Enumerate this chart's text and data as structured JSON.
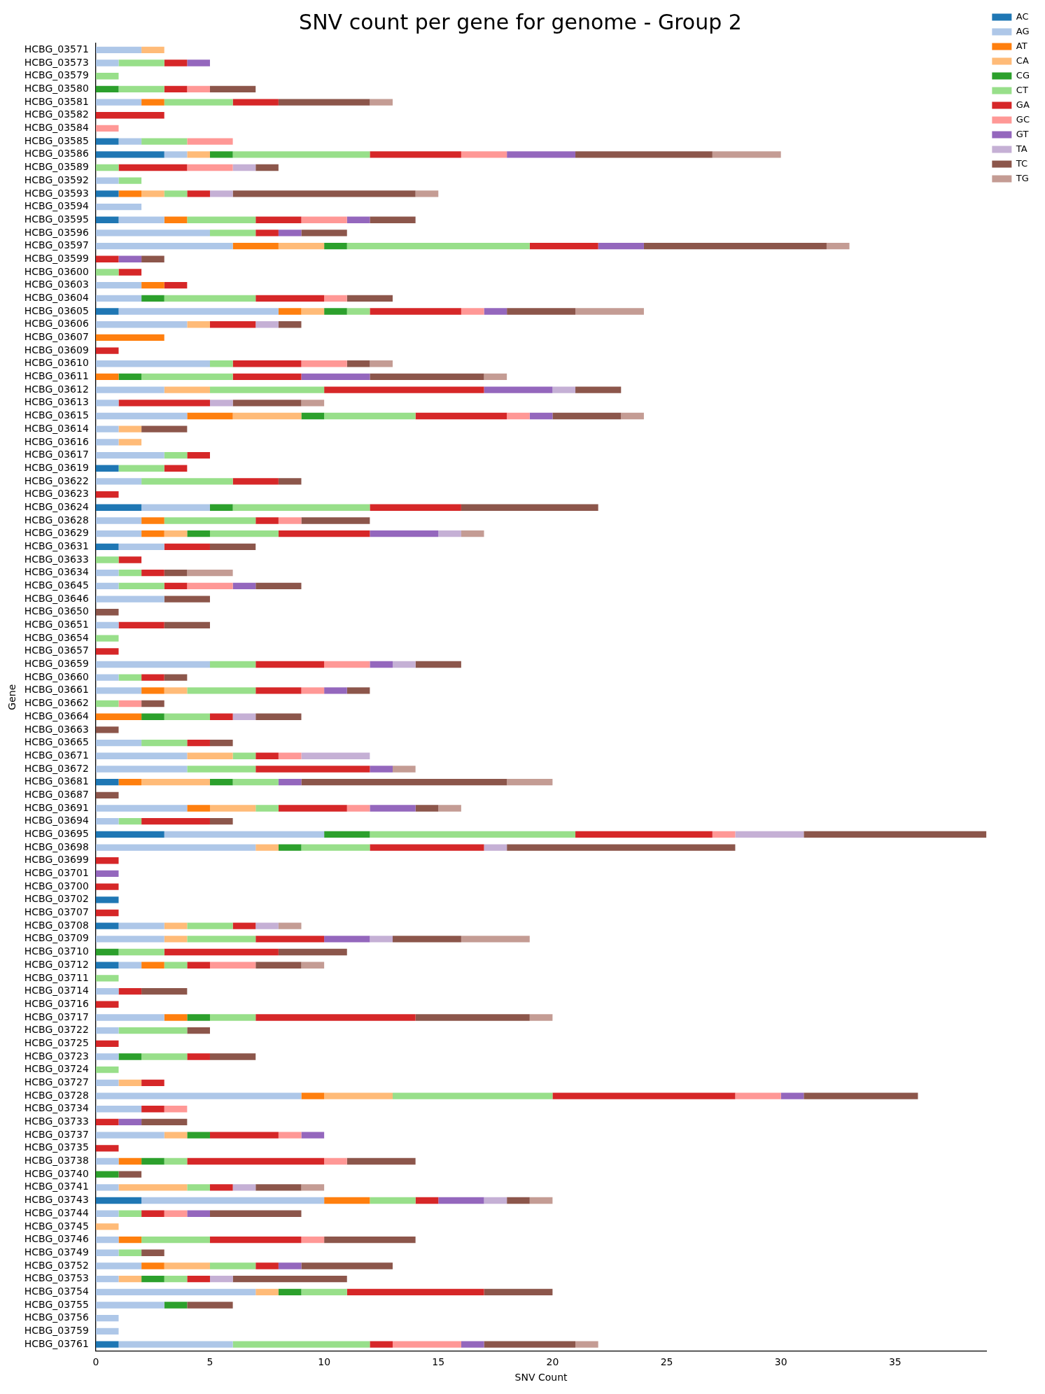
{
  "chart_data": {
    "type": "bar",
    "orientation": "horizontal",
    "stacked": true,
    "title": "SNV count per gene for genome - Group 2",
    "xlabel": "SNV Count",
    "ylabel": "Gene",
    "legend": "top right",
    "grid": false,
    "xlim": [
      0,
      39
    ],
    "xticks": [
      0,
      5,
      10,
      15,
      20,
      25,
      30,
      35
    ],
    "categories": [
      "HCBG_03571",
      "HCBG_03573",
      "HCBG_03579",
      "HCBG_03580",
      "HCBG_03581",
      "HCBG_03582",
      "HCBG_03584",
      "HCBG_03585",
      "HCBG_03586",
      "HCBG_03589",
      "HCBG_03592",
      "HCBG_03593",
      "HCBG_03594",
      "HCBG_03595",
      "HCBG_03596",
      "HCBG_03597",
      "HCBG_03599",
      "HCBG_03600",
      "HCBG_03603",
      "HCBG_03604",
      "HCBG_03605",
      "HCBG_03606",
      "HCBG_03607",
      "HCBG_03609",
      "HCBG_03610",
      "HCBG_03611",
      "HCBG_03612",
      "HCBG_03613",
      "HCBG_03615",
      "HCBG_03614",
      "HCBG_03616",
      "HCBG_03617",
      "HCBG_03619",
      "HCBG_03622",
      "HCBG_03623",
      "HCBG_03624",
      "HCBG_03628",
      "HCBG_03629",
      "HCBG_03631",
      "HCBG_03633",
      "HCBG_03634",
      "HCBG_03645",
      "HCBG_03646",
      "HCBG_03650",
      "HCBG_03651",
      "HCBG_03654",
      "HCBG_03657",
      "HCBG_03659",
      "HCBG_03660",
      "HCBG_03661",
      "HCBG_03662",
      "HCBG_03664",
      "HCBG_03663",
      "HCBG_03665",
      "HCBG_03671",
      "HCBG_03672",
      "HCBG_03681",
      "HCBG_03687",
      "HCBG_03691",
      "HCBG_03694",
      "HCBG_03695",
      "HCBG_03698",
      "HCBG_03699",
      "HCBG_03701",
      "HCBG_03700",
      "HCBG_03702",
      "HCBG_03707",
      "HCBG_03708",
      "HCBG_03709",
      "HCBG_03710",
      "HCBG_03712",
      "HCBG_03711",
      "HCBG_03714",
      "HCBG_03716",
      "HCBG_03717",
      "HCBG_03722",
      "HCBG_03725",
      "HCBG_03723",
      "HCBG_03724",
      "HCBG_03727",
      "HCBG_03728",
      "HCBG_03734",
      "HCBG_03733",
      "HCBG_03737",
      "HCBG_03735",
      "HCBG_03738",
      "HCBG_03740",
      "HCBG_03741",
      "HCBG_03743",
      "HCBG_03744",
      "HCBG_03745",
      "HCBG_03746",
      "HCBG_03749",
      "HCBG_03752",
      "HCBG_03753",
      "HCBG_03754",
      "HCBG_03755",
      "HCBG_03756",
      "HCBG_03759",
      "HCBG_03761"
    ],
    "series": [
      {
        "name": "AC",
        "color": "#1f77b4",
        "values": [
          0,
          0,
          0,
          0,
          0,
          0,
          0,
          1,
          3,
          0,
          0,
          1,
          0,
          1,
          0,
          0,
          0,
          0,
          0,
          0,
          1,
          0,
          0,
          0,
          0,
          0,
          0,
          0,
          0,
          0,
          0,
          0,
          1,
          0,
          0,
          2,
          0,
          0,
          1,
          0,
          0,
          0,
          0,
          0,
          0,
          0,
          0,
          0,
          0,
          0,
          0,
          0,
          0,
          0,
          0,
          0,
          1,
          0,
          0,
          0,
          3,
          0,
          0,
          0,
          0,
          1,
          0,
          1,
          0,
          0,
          1,
          0,
          0,
          0,
          0,
          0,
          0,
          0,
          0,
          0,
          0,
          0,
          0,
          0,
          0,
          0,
          0,
          0,
          2,
          0,
          0,
          0,
          0,
          0,
          0,
          0,
          0,
          0,
          0,
          1
        ]
      },
      {
        "name": "AG",
        "color": "#aec7e8",
        "values": [
          2,
          1,
          0,
          0,
          2,
          0,
          0,
          1,
          1,
          0,
          1,
          0,
          2,
          2,
          5,
          6,
          0,
          0,
          2,
          2,
          7,
          4,
          0,
          0,
          5,
          0,
          3,
          1,
          4,
          1,
          1,
          3,
          0,
          2,
          0,
          3,
          2,
          2,
          2,
          0,
          1,
          1,
          3,
          0,
          1,
          0,
          0,
          5,
          1,
          2,
          0,
          0,
          0,
          2,
          4,
          4,
          0,
          0,
          4,
          1,
          7,
          7,
          0,
          0,
          0,
          0,
          0,
          2,
          3,
          0,
          1,
          0,
          1,
          0,
          3,
          1,
          0,
          1,
          0,
          1,
          9,
          2,
          0,
          3,
          0,
          1,
          0,
          1,
          8,
          1,
          0,
          1,
          1,
          2,
          1,
          7,
          3,
          1,
          1,
          5
        ]
      },
      {
        "name": "AT",
        "color": "#ff7f0e",
        "values": [
          0,
          0,
          0,
          0,
          1,
          0,
          0,
          0,
          0,
          0,
          0,
          1,
          0,
          1,
          0,
          2,
          0,
          0,
          1,
          0,
          1,
          0,
          3,
          0,
          0,
          1,
          0,
          0,
          2,
          0,
          0,
          0,
          0,
          0,
          0,
          0,
          1,
          1,
          0,
          0,
          0,
          0,
          0,
          0,
          0,
          0,
          0,
          0,
          0,
          1,
          0,
          2,
          0,
          0,
          0,
          0,
          1,
          0,
          1,
          0,
          0,
          0,
          0,
          0,
          0,
          0,
          0,
          0,
          0,
          0,
          1,
          0,
          0,
          0,
          1,
          0,
          0,
          0,
          0,
          0,
          1,
          0,
          0,
          0,
          0,
          1,
          0,
          0,
          2,
          0,
          0,
          1,
          0,
          1,
          0,
          0,
          0,
          0,
          0,
          0
        ]
      },
      {
        "name": "CA",
        "color": "#ffbb78",
        "values": [
          1,
          0,
          0,
          0,
          0,
          0,
          0,
          0,
          1,
          0,
          0,
          1,
          0,
          0,
          0,
          2,
          0,
          0,
          0,
          0,
          1,
          1,
          0,
          0,
          0,
          0,
          2,
          0,
          3,
          1,
          1,
          0,
          0,
          0,
          0,
          0,
          0,
          1,
          0,
          0,
          0,
          0,
          0,
          0,
          0,
          0,
          0,
          0,
          0,
          1,
          0,
          0,
          0,
          0,
          2,
          0,
          3,
          0,
          2,
          0,
          0,
          1,
          0,
          0,
          0,
          0,
          0,
          1,
          1,
          0,
          0,
          0,
          0,
          0,
          0,
          0,
          0,
          0,
          0,
          1,
          3,
          0,
          0,
          1,
          0,
          0,
          0,
          3,
          0,
          0,
          1,
          0,
          0,
          2,
          1,
          1,
          0,
          0,
          0,
          0
        ]
      },
      {
        "name": "CG",
        "color": "#2ca02c",
        "values": [
          0,
          0,
          0,
          1,
          0,
          0,
          0,
          0,
          1,
          0,
          0,
          0,
          0,
          0,
          0,
          1,
          0,
          0,
          0,
          1,
          1,
          0,
          0,
          0,
          0,
          1,
          0,
          0,
          1,
          0,
          0,
          0,
          0,
          0,
          0,
          1,
          0,
          1,
          0,
          0,
          0,
          0,
          0,
          0,
          0,
          0,
          0,
          0,
          0,
          0,
          0,
          1,
          0,
          0,
          0,
          0,
          1,
          0,
          0,
          0,
          2,
          1,
          0,
          0,
          0,
          0,
          0,
          0,
          0,
          1,
          0,
          0,
          0,
          0,
          1,
          0,
          0,
          1,
          0,
          0,
          0,
          0,
          0,
          1,
          0,
          1,
          1,
          0,
          0,
          0,
          0,
          0,
          0,
          0,
          1,
          1,
          1,
          0,
          0,
          0
        ]
      },
      {
        "name": "CT",
        "color": "#98df8a",
        "values": [
          0,
          2,
          1,
          2,
          3,
          0,
          0,
          2,
          6,
          1,
          1,
          1,
          0,
          3,
          2,
          8,
          0,
          1,
          0,
          4,
          1,
          0,
          0,
          0,
          1,
          4,
          5,
          0,
          4,
          0,
          0,
          1,
          2,
          4,
          0,
          6,
          4,
          3,
          0,
          1,
          1,
          2,
          0,
          0,
          0,
          1,
          0,
          2,
          1,
          3,
          1,
          2,
          0,
          2,
          1,
          3,
          2,
          0,
          1,
          1,
          9,
          3,
          0,
          0,
          0,
          0,
          0,
          2,
          3,
          2,
          1,
          1,
          0,
          0,
          2,
          3,
          0,
          2,
          1,
          0,
          7,
          0,
          0,
          0,
          0,
          1,
          0,
          1,
          2,
          1,
          0,
          3,
          1,
          2,
          1,
          2,
          0,
          0,
          0,
          6
        ]
      },
      {
        "name": "GA",
        "color": "#d62728",
        "values": [
          0,
          1,
          0,
          1,
          2,
          3,
          0,
          0,
          4,
          3,
          0,
          1,
          0,
          2,
          1,
          3,
          1,
          1,
          1,
          3,
          4,
          2,
          0,
          1,
          3,
          3,
          7,
          4,
          4,
          0,
          0,
          1,
          1,
          2,
          1,
          4,
          1,
          4,
          2,
          1,
          1,
          1,
          0,
          0,
          2,
          0,
          1,
          3,
          1,
          2,
          0,
          1,
          0,
          1,
          1,
          5,
          0,
          0,
          3,
          3,
          6,
          5,
          1,
          0,
          1,
          0,
          1,
          1,
          3,
          5,
          1,
          0,
          1,
          1,
          7,
          0,
          1,
          1,
          0,
          1,
          8,
          1,
          1,
          3,
          1,
          6,
          0,
          1,
          1,
          1,
          0,
          4,
          0,
          1,
          1,
          6,
          0,
          0,
          0,
          1
        ]
      },
      {
        "name": "GC",
        "color": "#ff9896",
        "values": [
          0,
          0,
          0,
          1,
          0,
          0,
          1,
          2,
          2,
          2,
          0,
          0,
          0,
          2,
          0,
          0,
          0,
          0,
          0,
          1,
          1,
          0,
          0,
          0,
          2,
          0,
          0,
          0,
          1,
          0,
          0,
          0,
          0,
          0,
          0,
          0,
          1,
          0,
          0,
          0,
          0,
          2,
          0,
          0,
          0,
          0,
          0,
          2,
          0,
          1,
          1,
          0,
          0,
          0,
          1,
          0,
          0,
          0,
          1,
          0,
          1,
          0,
          0,
          0,
          0,
          0,
          0,
          0,
          0,
          0,
          2,
          0,
          0,
          0,
          0,
          0,
          0,
          0,
          0,
          0,
          2,
          1,
          0,
          1,
          0,
          1,
          0,
          0,
          0,
          1,
          0,
          1,
          0,
          0,
          0,
          0,
          0,
          0,
          0,
          3
        ]
      },
      {
        "name": "GT",
        "color": "#9467bd",
        "values": [
          0,
          1,
          0,
          0,
          0,
          0,
          0,
          0,
          3,
          0,
          0,
          0,
          0,
          1,
          1,
          2,
          1,
          0,
          0,
          0,
          1,
          0,
          0,
          0,
          0,
          3,
          3,
          0,
          1,
          0,
          0,
          0,
          0,
          0,
          0,
          0,
          0,
          3,
          0,
          0,
          0,
          1,
          0,
          0,
          0,
          0,
          0,
          1,
          0,
          1,
          0,
          0,
          0,
          0,
          0,
          1,
          1,
          0,
          2,
          0,
          0,
          0,
          0,
          1,
          0,
          0,
          0,
          0,
          2,
          0,
          0,
          0,
          0,
          0,
          0,
          0,
          0,
          0,
          0,
          0,
          1,
          0,
          1,
          1,
          0,
          0,
          0,
          0,
          2,
          1,
          0,
          0,
          0,
          1,
          0,
          0,
          0,
          0,
          0,
          1
        ]
      },
      {
        "name": "TA",
        "color": "#c5b0d5",
        "values": [
          0,
          0,
          0,
          0,
          0,
          0,
          0,
          0,
          0,
          1,
          0,
          1,
          0,
          0,
          0,
          0,
          0,
          0,
          0,
          0,
          0,
          1,
          0,
          0,
          0,
          0,
          1,
          1,
          0,
          0,
          0,
          0,
          0,
          0,
          0,
          0,
          0,
          1,
          0,
          0,
          0,
          0,
          0,
          0,
          0,
          0,
          0,
          1,
          0,
          0,
          0,
          1,
          0,
          0,
          3,
          0,
          0,
          0,
          0,
          0,
          3,
          1,
          0,
          0,
          0,
          0,
          0,
          1,
          1,
          0,
          0,
          0,
          0,
          0,
          0,
          0,
          0,
          0,
          0,
          0,
          0,
          0,
          0,
          0,
          0,
          0,
          0,
          1,
          1,
          0,
          0,
          0,
          0,
          0,
          1,
          0,
          0,
          0,
          0,
          0
        ]
      },
      {
        "name": "TC",
        "color": "#8c564b",
        "values": [
          0,
          0,
          0,
          2,
          4,
          0,
          0,
          0,
          6,
          1,
          0,
          8,
          0,
          2,
          2,
          8,
          1,
          0,
          0,
          2,
          3,
          1,
          0,
          0,
          1,
          5,
          2,
          3,
          3,
          2,
          0,
          0,
          0,
          1,
          0,
          6,
          3,
          0,
          2,
          0,
          1,
          2,
          2,
          1,
          2,
          0,
          0,
          2,
          1,
          1,
          1,
          2,
          1,
          1,
          0,
          0,
          9,
          1,
          1,
          1,
          8,
          10,
          0,
          0,
          0,
          0,
          0,
          0,
          3,
          3,
          2,
          0,
          2,
          0,
          5,
          1,
          0,
          2,
          0,
          0,
          5,
          0,
          2,
          0,
          0,
          3,
          1,
          2,
          1,
          4,
          0,
          4,
          1,
          4,
          5,
          3,
          2,
          0,
          0,
          4
        ]
      },
      {
        "name": "TG",
        "color": "#c49c94",
        "values": [
          0,
          0,
          0,
          0,
          1,
          0,
          0,
          0,
          3,
          0,
          0,
          1,
          0,
          0,
          0,
          1,
          0,
          0,
          0,
          0,
          3,
          0,
          0,
          0,
          1,
          1,
          0,
          1,
          1,
          0,
          0,
          0,
          0,
          0,
          0,
          0,
          0,
          1,
          0,
          0,
          2,
          0,
          0,
          0,
          0,
          0,
          0,
          0,
          0,
          0,
          0,
          0,
          0,
          0,
          0,
          1,
          2,
          0,
          1,
          0,
          0,
          0,
          0,
          0,
          0,
          0,
          0,
          1,
          3,
          0,
          1,
          0,
          0,
          0,
          1,
          0,
          0,
          0,
          0,
          0,
          0,
          0,
          0,
          0,
          0,
          0,
          0,
          1,
          1,
          0,
          0,
          0,
          0,
          0,
          0,
          0,
          0,
          0,
          0,
          1
        ]
      }
    ]
  }
}
